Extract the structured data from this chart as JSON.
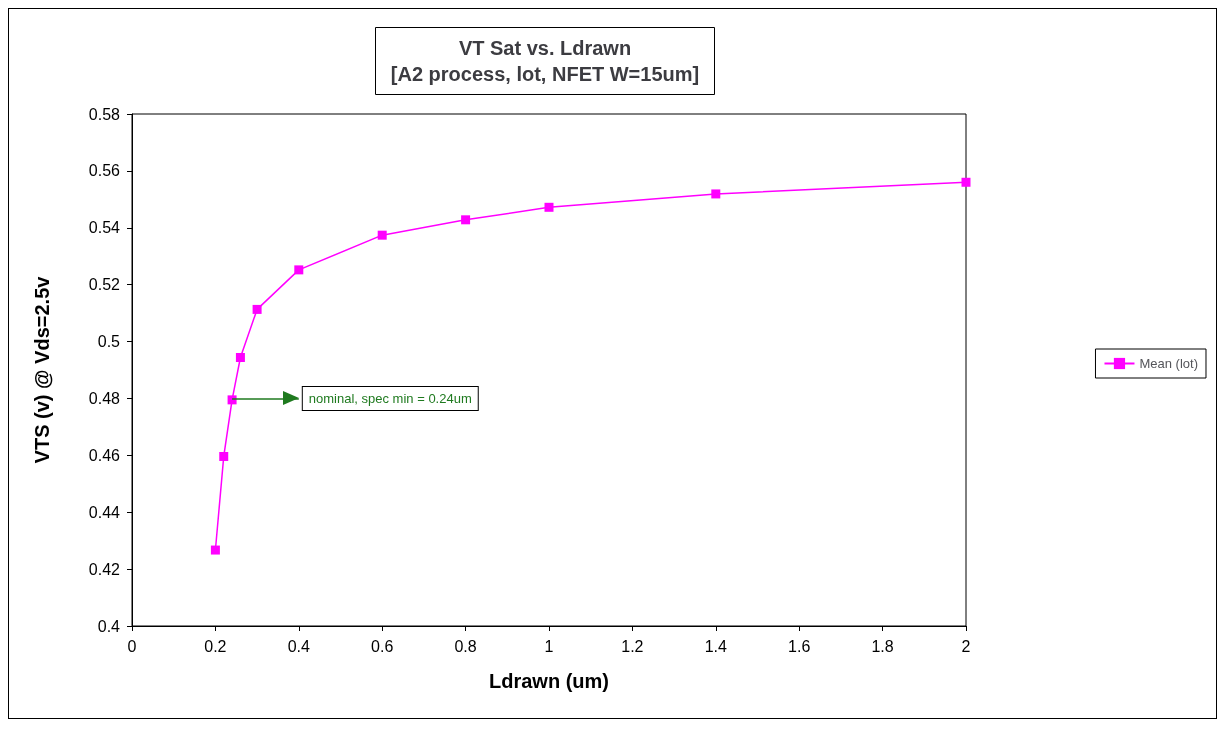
{
  "chart_data": {
    "type": "line",
    "title": "VT Sat vs. Ldrawn\n[A2 process, lot, NFET W=15um]",
    "xlabel": "Ldrawn (um)",
    "ylabel": "VTS (v) @ Vds=2.5v",
    "x": [
      0.2,
      0.22,
      0.24,
      0.26,
      0.3,
      0.4,
      0.6,
      0.8,
      1.0,
      1.4,
      2.0
    ],
    "series": [
      {
        "name": "Mean (lot)",
        "color": "#ff00ff",
        "values": [
          0.4267,
          0.4596,
          0.4795,
          0.4944,
          0.5113,
          0.5252,
          0.5374,
          0.5428,
          0.5472,
          0.5519,
          0.556
        ]
      }
    ],
    "xlim": [
      0,
      2
    ],
    "xticks": [
      0,
      0.2,
      0.4,
      0.6,
      0.8,
      1,
      1.2,
      1.4,
      1.6,
      1.8,
      2
    ],
    "ylim": [
      0.4,
      0.58
    ],
    "yticks": [
      0.4,
      0.42,
      0.44,
      0.46,
      0.48,
      0.5,
      0.52,
      0.54,
      0.56,
      0.58
    ],
    "annotations": [
      {
        "text": "nominal, spec min = 0.24um",
        "x": 0.24,
        "y": 0.48
      }
    ],
    "grid": false,
    "legend": "right",
    "marker": "square",
    "line_style": "solid"
  }
}
